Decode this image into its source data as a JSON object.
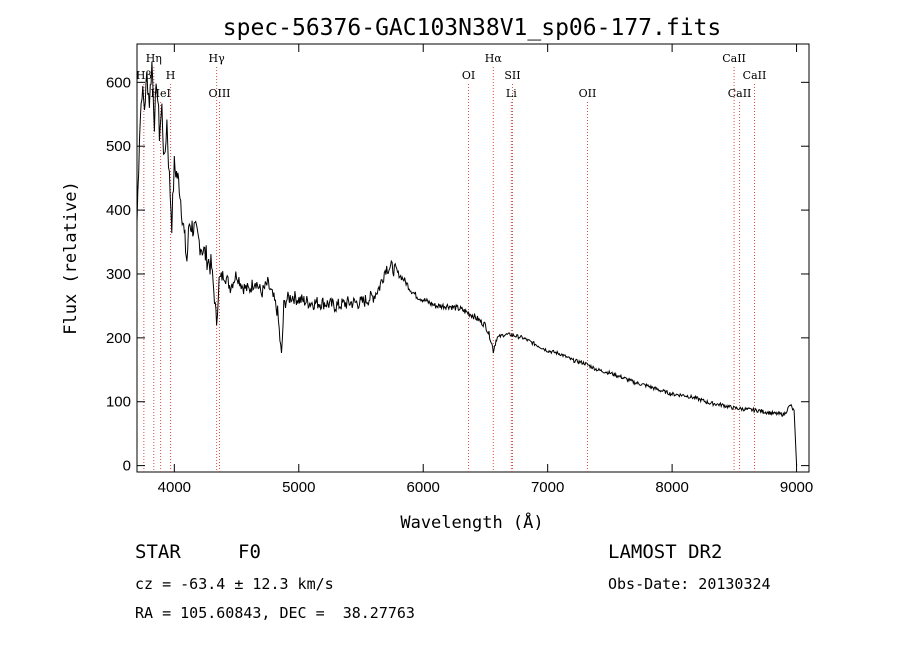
{
  "chart_data": {
    "type": "line",
    "title": "spec-56376-GAC103N38V1_sp06-177.fits",
    "xlabel": "Wavelength (Å)",
    "ylabel": "Flux (relative)",
    "xlim": [
      3700,
      9100
    ],
    "ylim": [
      -10,
      660
    ],
    "xticks": [
      4000,
      5000,
      6000,
      7000,
      8000,
      9000
    ],
    "yticks": [
      0,
      100,
      200,
      300,
      400,
      500,
      600
    ],
    "grid": false,
    "series": [
      {
        "x": [
          3700,
          3720,
          3740,
          3760,
          3780,
          3800,
          3820,
          3840,
          3860,
          3880,
          3900,
          3920,
          3940,
          3960,
          3980,
          4000,
          4040,
          4080,
          4101,
          4120,
          4160,
          4200,
          4250,
          4300,
          4340,
          4360,
          4400,
          4450,
          4500,
          4550,
          4600,
          4650,
          4700,
          4750,
          4800,
          4830,
          4861,
          4880,
          4900,
          4950,
          5000,
          5100,
          5200,
          5300,
          5400,
          5500,
          5600,
          5650,
          5700,
          5750,
          5800,
          5850,
          5900,
          5950,
          6000,
          6100,
          6200,
          6300,
          6400,
          6500,
          6540,
          6563,
          6590,
          6650,
          6700,
          6800,
          6900,
          7000,
          7100,
          7200,
          7300,
          7400,
          7500,
          7600,
          7700,
          7800,
          7900,
          8000,
          8100,
          8200,
          8300,
          8400,
          8500,
          8600,
          8700,
          8800,
          8900,
          8950,
          8980,
          9000
        ],
        "y": [
          380,
          520,
          590,
          560,
          610,
          570,
          630,
          540,
          600,
          520,
          560,
          470,
          540,
          450,
          380,
          470,
          440,
          360,
          320,
          380,
          370,
          350,
          330,
          310,
          225,
          290,
          300,
          280,
          300,
          280,
          275,
          290,
          270,
          285,
          260,
          240,
          170,
          250,
          260,
          265,
          260,
          255,
          255,
          250,
          255,
          255,
          265,
          280,
          310,
          310,
          300,
          290,
          275,
          265,
          260,
          250,
          250,
          245,
          235,
          220,
          200,
          180,
          200,
          205,
          205,
          200,
          190,
          180,
          175,
          165,
          160,
          150,
          145,
          138,
          130,
          125,
          118,
          112,
          110,
          105,
          98,
          95,
          90,
          88,
          86,
          82,
          80,
          95,
          85,
          0
        ]
      }
    ],
    "line_color": "#000000",
    "marker_color": "#d94a4a",
    "lines": [
      {
        "label": "Hη",
        "x": 3835,
        "row": 0
      },
      {
        "label": "Hβ",
        "x": 3755,
        "row": 1
      },
      {
        "label": "H",
        "x": 3970,
        "row": 1
      },
      {
        "label": "HeI",
        "x": 3890,
        "row": 2
      },
      {
        "label": "Hγ",
        "x": 4340,
        "row": 0
      },
      {
        "label": "OIII",
        "x": 4363,
        "row": 2
      },
      {
        "label": "OI",
        "x": 6364,
        "row": 1
      },
      {
        "label": "Hα",
        "x": 6563,
        "row": 0
      },
      {
        "label": "SII",
        "x": 6717,
        "row": 1
      },
      {
        "label": "Li",
        "x": 6708,
        "row": 2
      },
      {
        "label": "OII",
        "x": 7320,
        "row": 2
      },
      {
        "label": "CaII",
        "x": 8498,
        "row": 0
      },
      {
        "label": "CaII",
        "x": 8662,
        "row": 1
      },
      {
        "label": "CaII",
        "x": 8542,
        "row": 2
      }
    ]
  },
  "info": {
    "class_label": "STAR",
    "subclass": "F0",
    "survey": "LAMOST DR2",
    "cz": "cz = -63.4 ± 12.3 km/s",
    "obs_date": "Obs-Date: 20130324",
    "coords": "RA = 105.60843, DEC =  38.27763"
  }
}
